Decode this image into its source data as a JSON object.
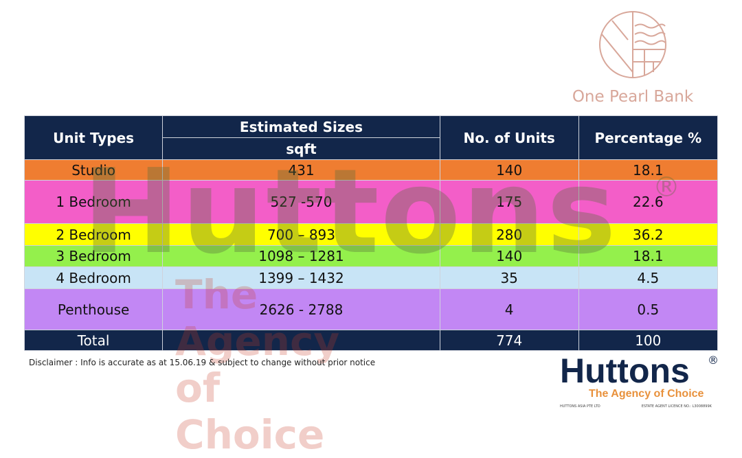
{
  "logo": {
    "name": "One Pearl Bank"
  },
  "table": {
    "headers": {
      "unit_types": "Unit Types",
      "sizes": "Estimated Sizes",
      "sizes_unit": "sqft",
      "units": "No. of Units",
      "percentage": "Percentage %"
    },
    "rows": [
      {
        "type": "Studio",
        "size": "431",
        "units": "140",
        "pct": "18.1",
        "color": "#ef7d31"
      },
      {
        "type": "1 Bedroom",
        "size": "527 -570",
        "units": "175",
        "pct": "22.6",
        "color": "#f35ec8"
      },
      {
        "type": "2 Bedroom",
        "size": "700 – 893",
        "units": "280",
        "pct": "36.2",
        "color": "#ffff00"
      },
      {
        "type": "3 Bedroom",
        "size": "1098 – 1281",
        "units": "140",
        "pct": "18.1",
        "color": "#94f04c"
      },
      {
        "type": "4 Bedroom",
        "size": "1399 – 1432",
        "units": "35",
        "pct": "4.5",
        "color": "#c8e4f6"
      },
      {
        "type": "Penthouse",
        "size": "2626 - 2788",
        "units": "4",
        "pct": "0.5",
        "color": "#c287f4"
      }
    ],
    "total": {
      "label": "Total",
      "size": "",
      "units": "774",
      "pct": "100"
    }
  },
  "watermark": {
    "brand": "Huttons",
    "reg": "®",
    "tagline": "The Agency of Choice"
  },
  "disclaimer": "Disclaimer : Info is accurate as at 15.06.19 & subject to change without prior notice",
  "huttons": {
    "name": "Huttons",
    "reg": "®",
    "tagline": "The Agency of Choice",
    "company": "HUTTONS ASIA PTE LTD",
    "licence": "ESTATE AGENT LICENCE NO.: L3008899K"
  }
}
